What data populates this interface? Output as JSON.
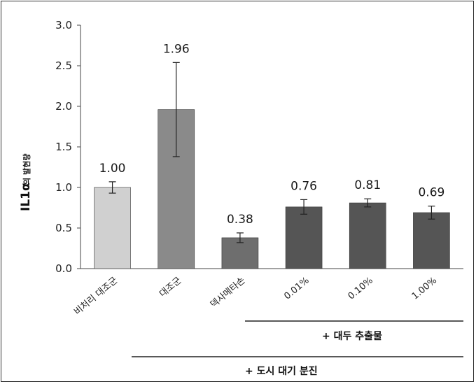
{
  "chart_data": {
    "type": "bar",
    "ylabel_main": "IL1α",
    "ylabel_sub": "의 발현량",
    "ylim": [
      0,
      3.0
    ],
    "yticks": [
      "0.0",
      "0.5",
      "1.0",
      "1.5",
      "2.0",
      "2.5",
      "3.0"
    ],
    "categories": [
      "비처리 대조군",
      "대조군",
      "덱사메타손",
      "0.01%",
      "0.10%",
      "1.00%"
    ],
    "values": [
      1.0,
      1.96,
      0.38,
      0.76,
      0.81,
      0.69
    ],
    "value_labels": [
      "1.00",
      "1.96",
      "0.38",
      "0.76",
      "0.81",
      "0.69"
    ],
    "errors": [
      0.07,
      0.58,
      0.06,
      0.09,
      0.05,
      0.08
    ],
    "colors": [
      "#d0d0d0",
      "#8a8a8a",
      "#6e6e6e",
      "#555555",
      "#555555",
      "#555555"
    ],
    "group_labels": {
      "extract": "+ 대두 추출물",
      "dust": "+ 도시 대기 분진"
    }
  }
}
